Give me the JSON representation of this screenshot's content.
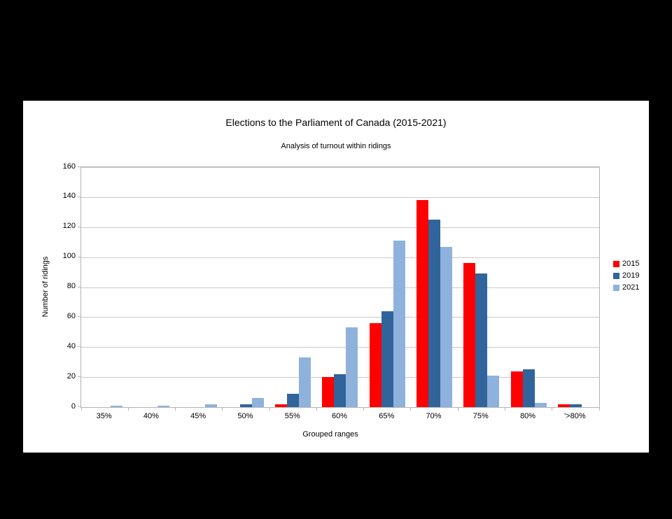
{
  "page": {
    "background_color": "#000000",
    "panel_color": "#ffffff"
  },
  "chart_data": {
    "type": "bar",
    "title": "Elections to the Parliament of Canada (2015-2021)",
    "subtitle": "Analysis of turnout within ridings",
    "xlabel": "Grouped ranges",
    "ylabel": "Number of ridings",
    "categories": [
      "35%",
      "40%",
      "45%",
      "50%",
      "55%",
      "60%",
      "65%",
      "70%",
      "75%",
      "80%",
      "'>80%"
    ],
    "series": [
      {
        "name": "2015",
        "color": "#ff0000",
        "values": [
          0,
          0,
          0,
          0,
          2,
          20,
          56,
          138,
          96,
          24,
          2
        ]
      },
      {
        "name": "2019",
        "color": "#30649b",
        "values": [
          0,
          0,
          0,
          2,
          9,
          22,
          64,
          125,
          89,
          25,
          2
        ]
      },
      {
        "name": "2021",
        "color": "#8eb2dc",
        "values": [
          1,
          1,
          2,
          6,
          33,
          53,
          111,
          107,
          21,
          3,
          0
        ]
      }
    ],
    "ylim": [
      0,
      160
    ],
    "ytick_step": 20,
    "ytick_labels": [
      "0",
      "20",
      "40",
      "60",
      "80",
      "100",
      "120",
      "140",
      "160"
    ],
    "grid": "horizontal",
    "legend_position": "right",
    "colors": {
      "gridline": "#c9c9c9",
      "plot_border": "#b3b3b3",
      "axis_text": "#000000"
    }
  }
}
